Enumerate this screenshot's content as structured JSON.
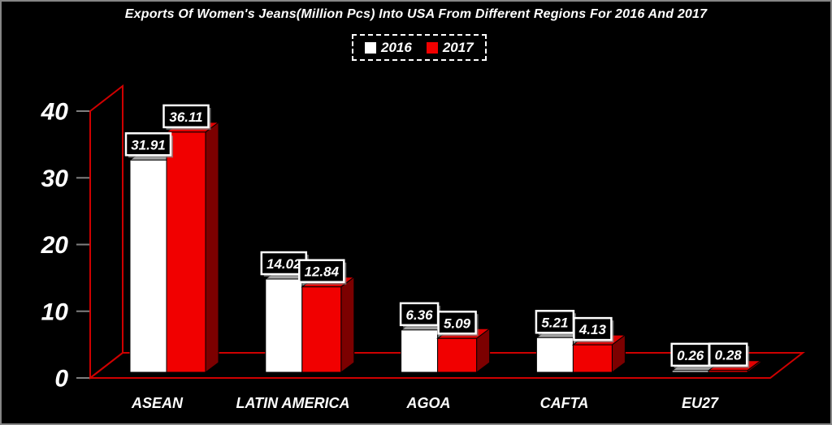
{
  "window": {
    "background": "#000000",
    "border_color": "#858585"
  },
  "chart_data": {
    "type": "bar",
    "style": "3d-clustered",
    "title": "Exports Of Women's Jeans(Million Pcs) Into USA From Different Regions For 2016 And 2017",
    "categories": [
      "ASEAN",
      "LATIN AMERICA",
      "AGOA",
      "CAFTA",
      "EU27"
    ],
    "series": [
      {
        "name": "2016",
        "color": "#ffffff",
        "top_color": "#a3a3a3",
        "side_color": "#8c8c8c",
        "values": [
          31.91,
          14.02,
          6.36,
          5.21,
          0.26
        ]
      },
      {
        "name": "2017",
        "color": "#f10000",
        "top_color": "#e00000",
        "side_color": "#7c0000",
        "values": [
          36.11,
          12.84,
          5.09,
          4.13,
          0.28
        ]
      }
    ],
    "xlabel": "",
    "ylabel": "",
    "yticks": [
      0,
      10,
      20,
      30,
      40
    ],
    "ylim": [
      0,
      40
    ],
    "grid": false,
    "legend_position": "top",
    "value_labels": true,
    "axis_color": "#cf0000",
    "tick_color": "#7f7f7f",
    "text_color": "#ffffff",
    "value_label_box": {
      "fill": "#000000",
      "border_color": "#ffffff",
      "text_color": "#ffffff",
      "shadow_color": "#8a8a8a"
    }
  }
}
